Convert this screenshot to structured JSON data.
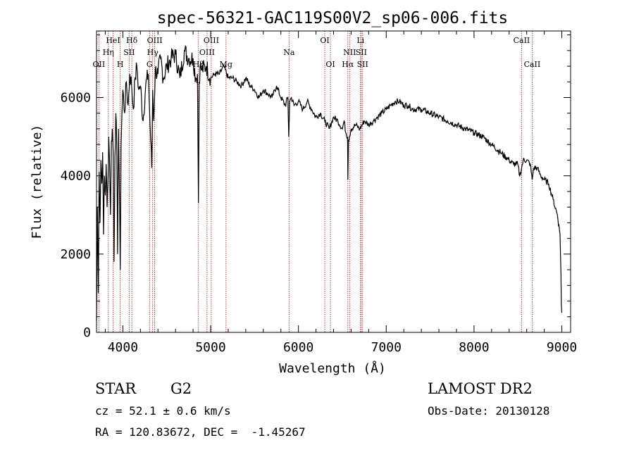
{
  "chart_data": {
    "type": "line",
    "title": "spec-56321-GAC119S00V2_sp06-006.fits",
    "xlabel": "Wavelength (Å)",
    "ylabel": "Flux (relative)",
    "xlim": [
      3700,
      9100
    ],
    "ylim": [
      0,
      7700
    ],
    "xticks": [
      4000,
      5000,
      6000,
      7000,
      8000,
      9000
    ],
    "yticks": [
      0,
      2000,
      4000,
      6000
    ],
    "grid": false,
    "series": [
      {
        "x": [
          3700,
          3710,
          3720,
          3730,
          3740,
          3750,
          3760,
          3770,
          3780,
          3790,
          3800,
          3810,
          3820,
          3830,
          3840,
          3850,
          3860,
          3870,
          3880,
          3890,
          3900,
          3910,
          3920,
          3930,
          3940,
          3950,
          3960,
          3970,
          3980,
          3990,
          4000,
          4020,
          4040,
          4060,
          4080,
          4100,
          4120,
          4140,
          4160,
          4180,
          4200,
          4230,
          4260,
          4290,
          4310,
          4330,
          4340,
          4350,
          4370,
          4400,
          4430,
          4460,
          4500,
          4550,
          4600,
          4650,
          4700,
          4750,
          4800,
          4830,
          4850,
          4861,
          4870,
          4880,
          4900,
          4950,
          5000,
          5050,
          5100,
          5150,
          5200,
          5250,
          5300,
          5350,
          5400,
          5450,
          5500,
          5550,
          5600,
          5650,
          5700,
          5750,
          5800,
          5850,
          5880,
          5890,
          5900,
          5920,
          5950,
          6000,
          6050,
          6100,
          6150,
          6200,
          6250,
          6300,
          6350,
          6400,
          6450,
          6500,
          6520,
          6540,
          6560,
          6563,
          6570,
          6580,
          6600,
          6650,
          6700,
          6750,
          6800,
          6850,
          6900,
          6950,
          7000,
          7050,
          7100,
          7150,
          7200,
          7250,
          7300,
          7400,
          7500,
          7600,
          7700,
          7800,
          7900,
          8000,
          8100,
          8200,
          8300,
          8400,
          8450,
          8498,
          8520,
          8542,
          8560,
          8600,
          8640,
          8662,
          8680,
          8720,
          8760,
          8800,
          8850,
          8900,
          8950,
          8980,
          8990,
          8995,
          9000
        ],
        "y": [
          300,
          3200,
          1000,
          4100,
          2800,
          4400,
          3800,
          4600,
          2500,
          4000,
          3500,
          4300,
          3200,
          3800,
          5000,
          4200,
          3000,
          4900,
          5200,
          4600,
          1800,
          4500,
          5600,
          4800,
          2000,
          5200,
          3800,
          1600,
          4800,
          5600,
          6200,
          5600,
          6400,
          5800,
          6600,
          6300,
          5700,
          6500,
          6800,
          6200,
          6300,
          5400,
          6300,
          6600,
          5300,
          4200,
          6200,
          5400,
          6700,
          6600,
          7000,
          6500,
          6800,
          7000,
          7100,
          6500,
          7200,
          7000,
          7000,
          6500,
          6600,
          3300,
          6400,
          6800,
          6700,
          6800,
          6500,
          6600,
          6600,
          6800,
          6500,
          6500,
          6400,
          6300,
          6500,
          6300,
          6200,
          6000,
          6200,
          6100,
          6000,
          6300,
          6000,
          5800,
          6000,
          5000,
          5900,
          6000,
          5800,
          5900,
          5700,
          5900,
          5700,
          5500,
          5600,
          5400,
          5200,
          5500,
          5400,
          5200,
          5400,
          5100,
          5000,
          3900,
          4900,
          5000,
          5200,
          5300,
          5200,
          5400,
          5300,
          5400,
          5500,
          5600,
          5700,
          5800,
          5900,
          5900,
          5800,
          5800,
          5700,
          5700,
          5600,
          5500,
          5400,
          5300,
          5200,
          5100,
          5000,
          4800,
          4600,
          4400,
          4300,
          4300,
          4000,
          4200,
          4400,
          4400,
          4300,
          3900,
          4200,
          4200,
          4000,
          3900,
          3800,
          3400,
          3000,
          2500,
          1500,
          700,
          500
        ]
      }
    ],
    "lines": [
      {
        "x": 3727,
        "label": "OII",
        "row": 3
      },
      {
        "x": 3835,
        "label": "Hη",
        "row": 2
      },
      {
        "x": 3889,
        "label": "HeI",
        "row": 1
      },
      {
        "x": 3970,
        "label": "H",
        "row": 3
      },
      {
        "x": 4072,
        "label": "SII",
        "row": 2
      },
      {
        "x": 4102,
        "label": "Hδ",
        "row": 1
      },
      {
        "x": 4304,
        "label": "G",
        "row": 3
      },
      {
        "x": 4340,
        "label": "Hγ",
        "row": 2
      },
      {
        "x": 4363,
        "label": "OIII",
        "row": 1
      },
      {
        "x": 4861,
        "label": "Hβ",
        "row": 3
      },
      {
        "x": 4959,
        "label": "OIII",
        "row": 2
      },
      {
        "x": 5007,
        "label": "OIII",
        "row": 1
      },
      {
        "x": 5175,
        "label": "Mg",
        "row": 3
      },
      {
        "x": 5893,
        "label": "Na",
        "row": 2
      },
      {
        "x": 6300,
        "label": "OI",
        "row": 1
      },
      {
        "x": 6364,
        "label": "OI",
        "row": 3
      },
      {
        "x": 6563,
        "label": "Hα",
        "row": 3
      },
      {
        "x": 6583,
        "label": "NII",
        "row": 2
      },
      {
        "x": 6707,
        "label": "Li",
        "row": 1
      },
      {
        "x": 6716,
        "label": "SII",
        "row": 2
      },
      {
        "x": 6731,
        "label": "SII",
        "row": 3
      },
      {
        "x": 8542,
        "label": "CaII",
        "row": 1
      },
      {
        "x": 8662,
        "label": "CaII",
        "row": 3
      }
    ]
  },
  "footer": {
    "object_type": "STAR",
    "subclass": "G2",
    "survey": "LAMOST DR2",
    "redshift": "cz = 52.1 ± 0.6 km/s",
    "obs_date": "Obs-Date: 20130128",
    "coordinates": "RA = 120.83672, DEC =  -1.45267"
  },
  "colors": {
    "line_marker": "#9b1c1c",
    "spectrum": "#000000",
    "axis": "#000000"
  }
}
